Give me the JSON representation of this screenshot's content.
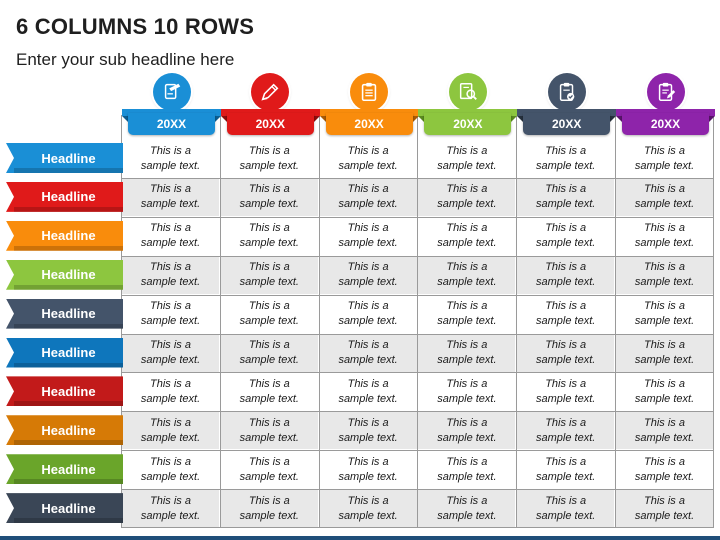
{
  "title": "6 COLUMNS 10 ROWS",
  "subtitle": "Enter your sub headline here",
  "columns": [
    {
      "label": "20XX",
      "color": "#1a8fd6",
      "dark": "#0b5e92",
      "icon": "clipboard-pencil-icon"
    },
    {
      "label": "20XX",
      "color": "#e01a1a",
      "dark": "#8f0c0c",
      "icon": "pencil-edit-icon"
    },
    {
      "label": "20XX",
      "color": "#f98c0c",
      "dark": "#a85a04",
      "icon": "clipboard-list-icon"
    },
    {
      "label": "20XX",
      "color": "#8dc63f",
      "dark": "#5a8a1f",
      "icon": "document-search-icon"
    },
    {
      "label": "20XX",
      "color": "#44546a",
      "dark": "#26303d",
      "icon": "clipboard-check-icon"
    },
    {
      "label": "20XX",
      "color": "#8e24aa",
      "dark": "#5a146d",
      "icon": "clipboard-edit-icon"
    }
  ],
  "rows": [
    {
      "label": "Headline",
      "color": "#1a8fd6"
    },
    {
      "label": "Headline",
      "color": "#e01a1a"
    },
    {
      "label": "Headline",
      "color": "#f98c0c"
    },
    {
      "label": "Headline",
      "color": "#8dc63f"
    },
    {
      "label": "Headline",
      "color": "#44546a"
    },
    {
      "label": "Headline",
      "color": "#0e76bc"
    },
    {
      "label": "Headline",
      "color": "#c21a1a"
    },
    {
      "label": "Headline",
      "color": "#d67a06"
    },
    {
      "label": "Headline",
      "color": "#6aa52a"
    },
    {
      "label": "Headline",
      "color": "#3a4656"
    }
  ],
  "cell_text": {
    "line1": "This is a",
    "line2": "sample text."
  }
}
